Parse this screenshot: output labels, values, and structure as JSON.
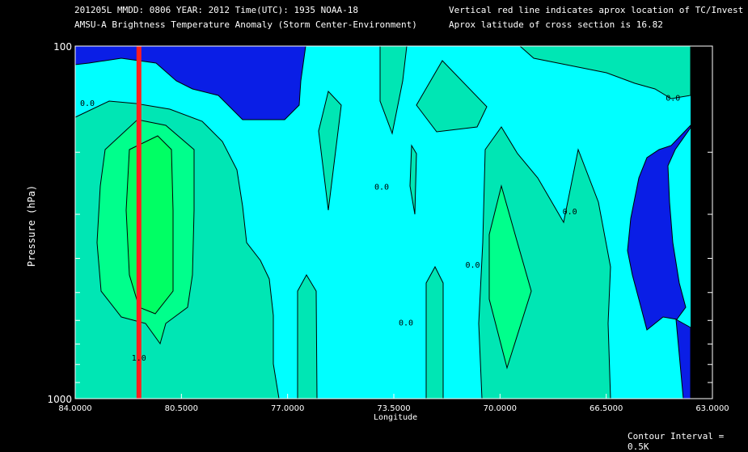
{
  "header": {
    "line1": "201205L  MMDD: 0806 YEAR: 2012 Time(UTC): 1935 NOAA-18",
    "line2": "AMSU-A Brightness Temperature Anomaly (Storm Center-Environment)",
    "line3": "Vertical red line indicates aprox location of TC/Invest",
    "line4": "Aprox latitude of cross section is 16.82"
  },
  "footer": {
    "contour_interval": "Contour Interval = 0.5K"
  },
  "chart_data": {
    "type": "heatmap",
    "title": "AMSU-A Brightness Temperature Anomaly (Storm Center-Environment)",
    "xlabel": "Longitude",
    "ylabel": "Pressure (hPa)",
    "xlim": [
      84.0,
      63.0
    ],
    "ylim": [
      1000,
      100
    ],
    "y_scale": "log",
    "x_ticks": [
      "84.0000",
      "80.5000",
      "77.0000",
      "73.5000",
      "70.0000",
      "66.5000",
      "63.0000"
    ],
    "x_tick_values": [
      84.0,
      80.5,
      77.0,
      73.5,
      70.0,
      66.5,
      63.0
    ],
    "y_ticks": [
      "100",
      "1000"
    ],
    "y_tick_values": [
      100,
      1000
    ],
    "contour_interval_K": 0.5,
    "contour_labels": [
      {
        "text": "0.0",
        "lon": 83.6,
        "p": 148
      },
      {
        "text": "0.0",
        "lon": 73.9,
        "p": 255
      },
      {
        "text": "0.0",
        "lon": 73.1,
        "p": 620
      },
      {
        "text": "0.0",
        "lon": 70.9,
        "p": 425
      },
      {
        "text": "0.0",
        "lon": 67.7,
        "p": 300
      },
      {
        "text": "0.0",
        "lon": 64.3,
        "p": 143
      },
      {
        "text": "1.0",
        "lon": 81.9,
        "p": 780
      }
    ],
    "tc_location_lon": 81.9,
    "colors": {
      "minus1": "#0a1ee6",
      "minus05": "#00ffff",
      "zero": "#00e6b4",
      "plus05": "#00ff8c",
      "plus1": "#00ff64",
      "tc_line": "#ff1e1e"
    }
  }
}
